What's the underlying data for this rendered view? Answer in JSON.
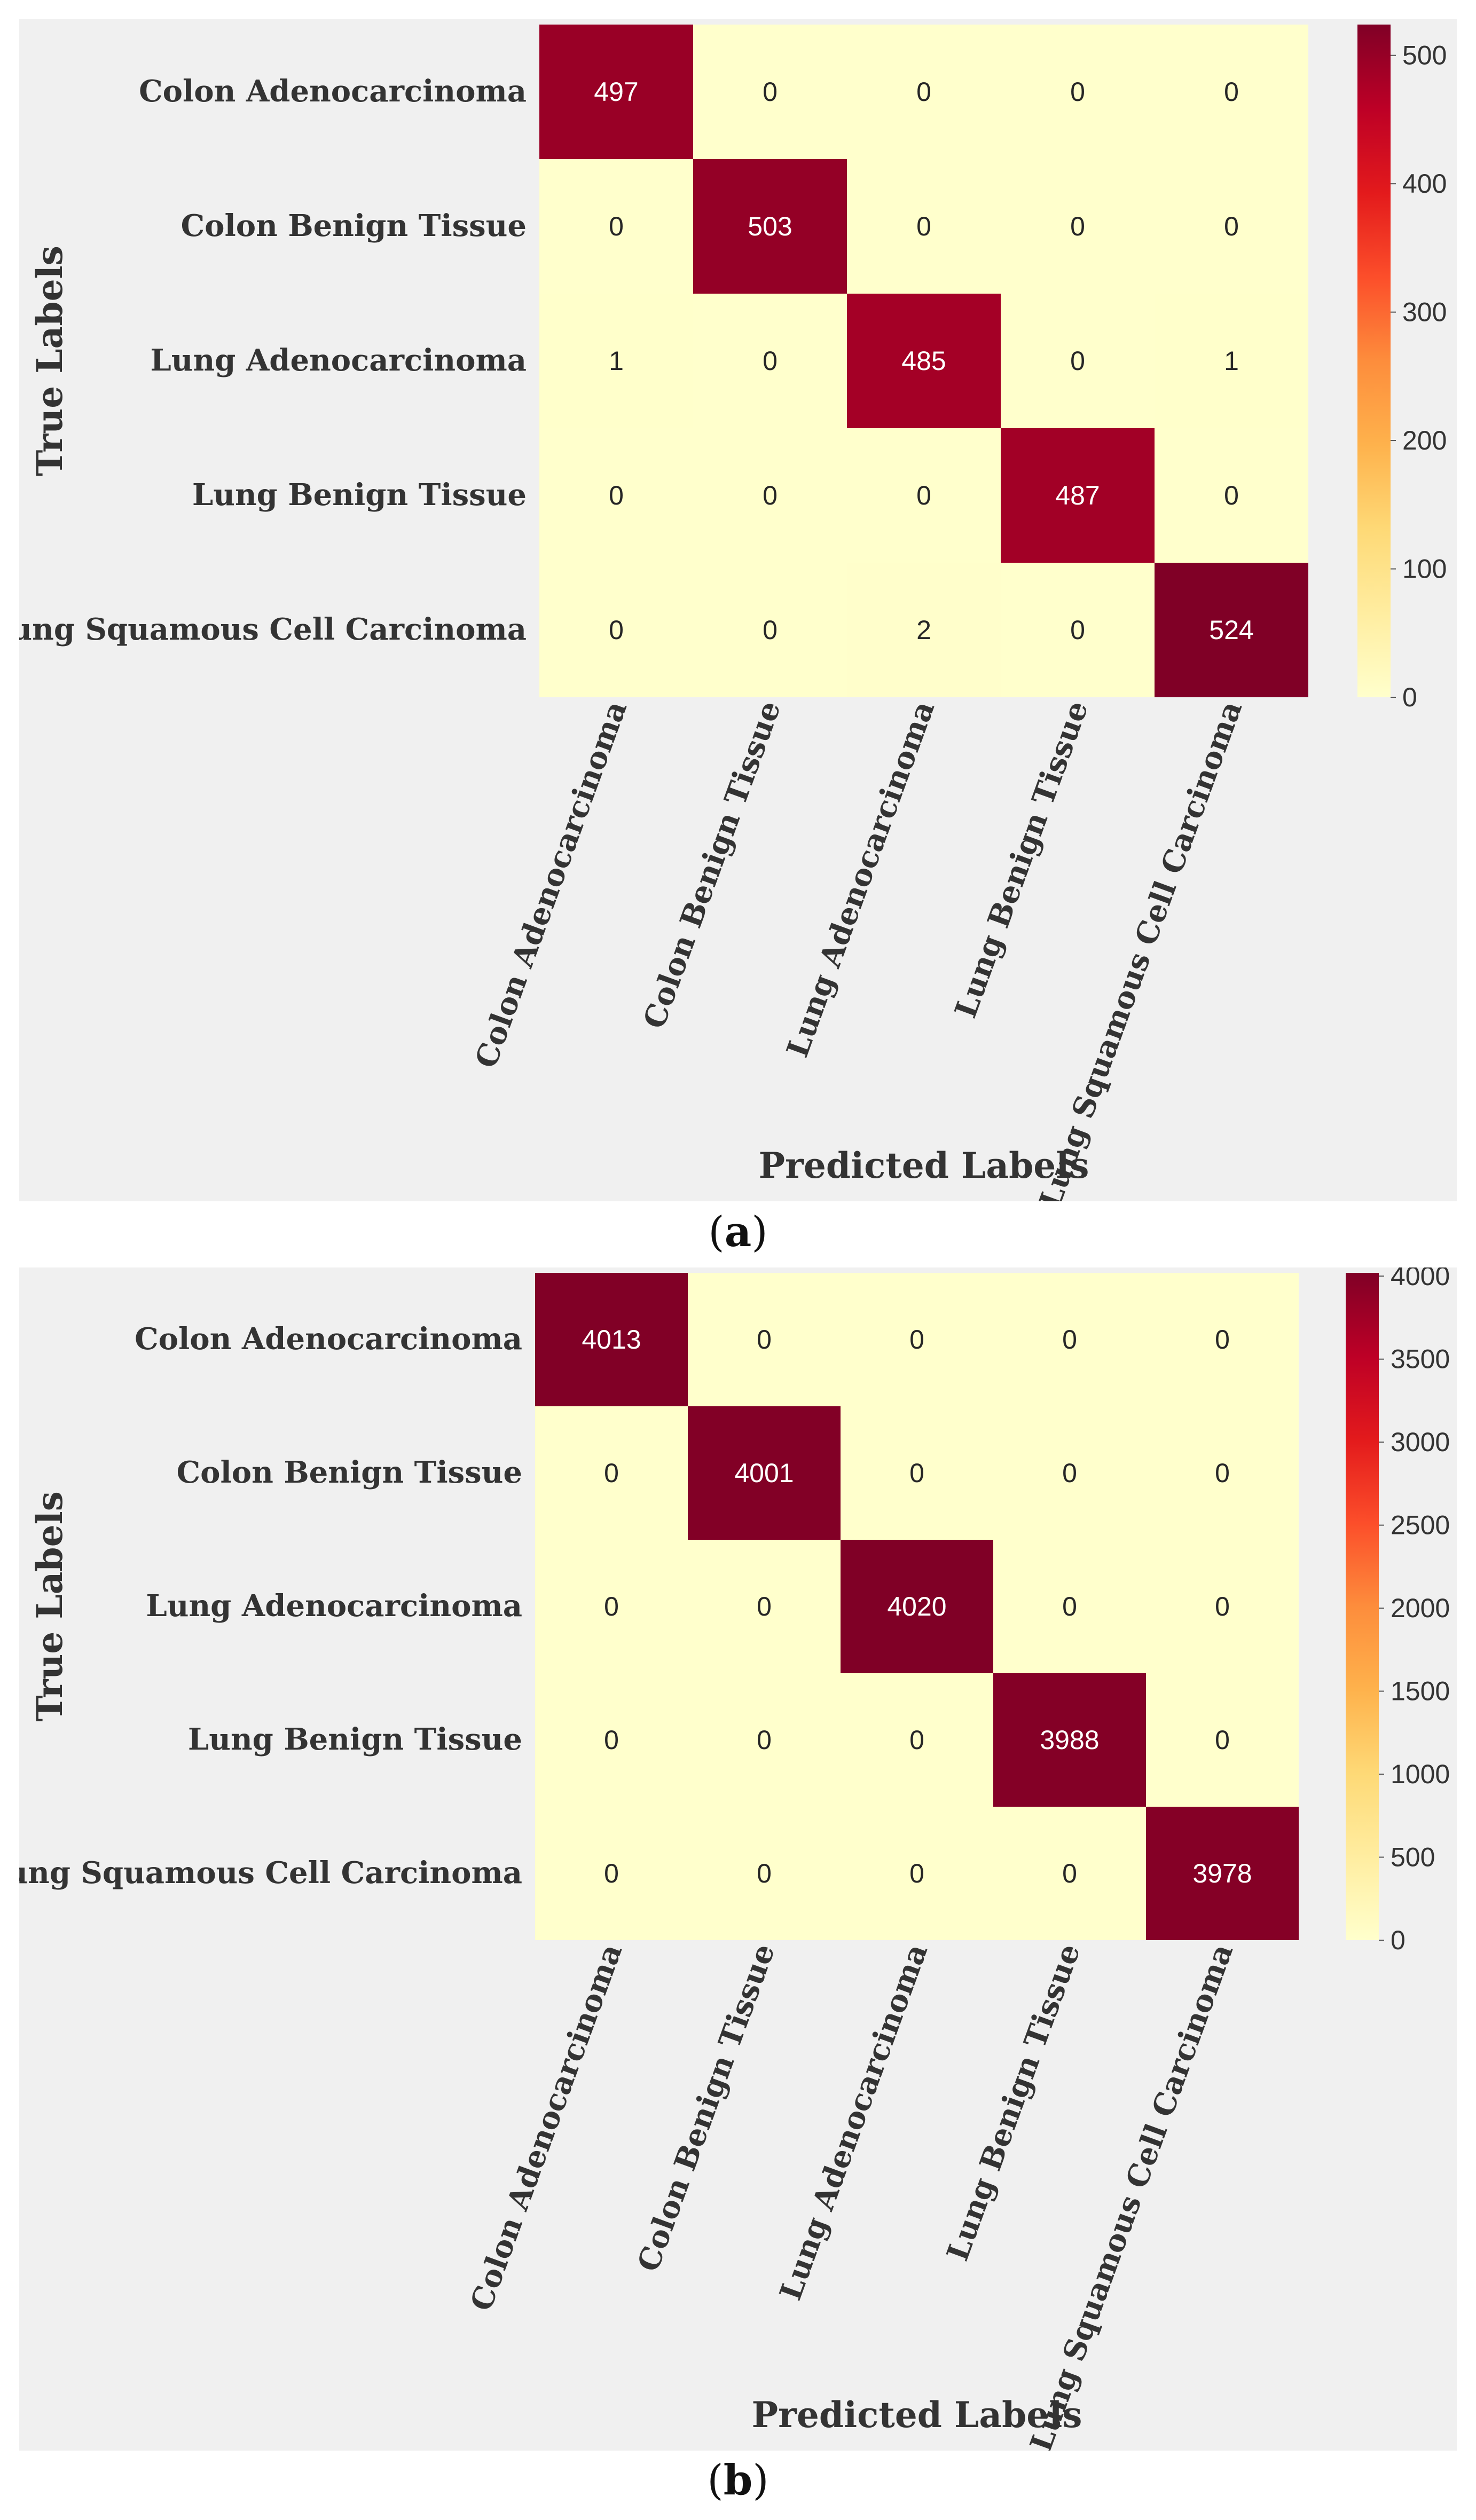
{
  "chart_data": [
    {
      "type": "heatmap",
      "panel": "a",
      "caption_letter": "a",
      "xlabel": "Predicted Labels",
      "ylabel": "True Labels",
      "row_labels": [
        "Colon Adenocarcinoma",
        "Colon Benign Tissue",
        "Lung Adenocarcinoma",
        "Lung Benign Tissue",
        "Lung Squamous Cell Carcinoma"
      ],
      "col_labels": [
        "Colon Adenocarcinoma",
        "Colon Benign Tissue",
        "Lung Adenocarcinoma",
        "Lung Benign Tissue",
        "Lung Squamous Cell Carcinoma"
      ],
      "matrix": [
        [
          497,
          0,
          0,
          0,
          0
        ],
        [
          0,
          503,
          0,
          0,
          0
        ],
        [
          1,
          0,
          485,
          0,
          1
        ],
        [
          0,
          0,
          0,
          487,
          0
        ],
        [
          0,
          0,
          2,
          0,
          524
        ]
      ],
      "colorbar": {
        "min": 0,
        "max": 524,
        "ticks": [
          0,
          100,
          200,
          300,
          400,
          500
        ]
      },
      "colormap": "YlOrRd"
    },
    {
      "type": "heatmap",
      "panel": "b",
      "caption_letter": "b",
      "xlabel": "Predicted Labels",
      "ylabel": "True Labels",
      "row_labels": [
        "Colon Adenocarcinoma",
        "Colon Benign Tissue",
        "Lung Adenocarcinoma",
        "Lung Benign Tissue",
        "Lung Squamous Cell Carcinoma"
      ],
      "col_labels": [
        "Colon Adenocarcinoma",
        "Colon Benign Tissue",
        "Lung Adenocarcinoma",
        "Lung Benign Tissue",
        "Lung Squamous Cell Carcinoma"
      ],
      "matrix": [
        [
          4013,
          0,
          0,
          0,
          0
        ],
        [
          0,
          4001,
          0,
          0,
          0
        ],
        [
          0,
          0,
          4020,
          0,
          0
        ],
        [
          0,
          0,
          0,
          3988,
          0
        ],
        [
          0,
          0,
          0,
          0,
          3978
        ]
      ],
      "colorbar": {
        "min": 0,
        "max": 4020,
        "ticks": [
          0,
          500,
          1000,
          1500,
          2000,
          2500,
          3000,
          3500,
          4000
        ]
      },
      "colormap": "YlOrRd"
    }
  ],
  "colors": {
    "panel_bg": "#f0f0f0",
    "colormap_stops": [
      "#ffffcc",
      "#ffeda0",
      "#fed976",
      "#feb24c",
      "#fd8d3c",
      "#fc4e2a",
      "#e31a1c",
      "#bd0026",
      "#800026"
    ]
  }
}
